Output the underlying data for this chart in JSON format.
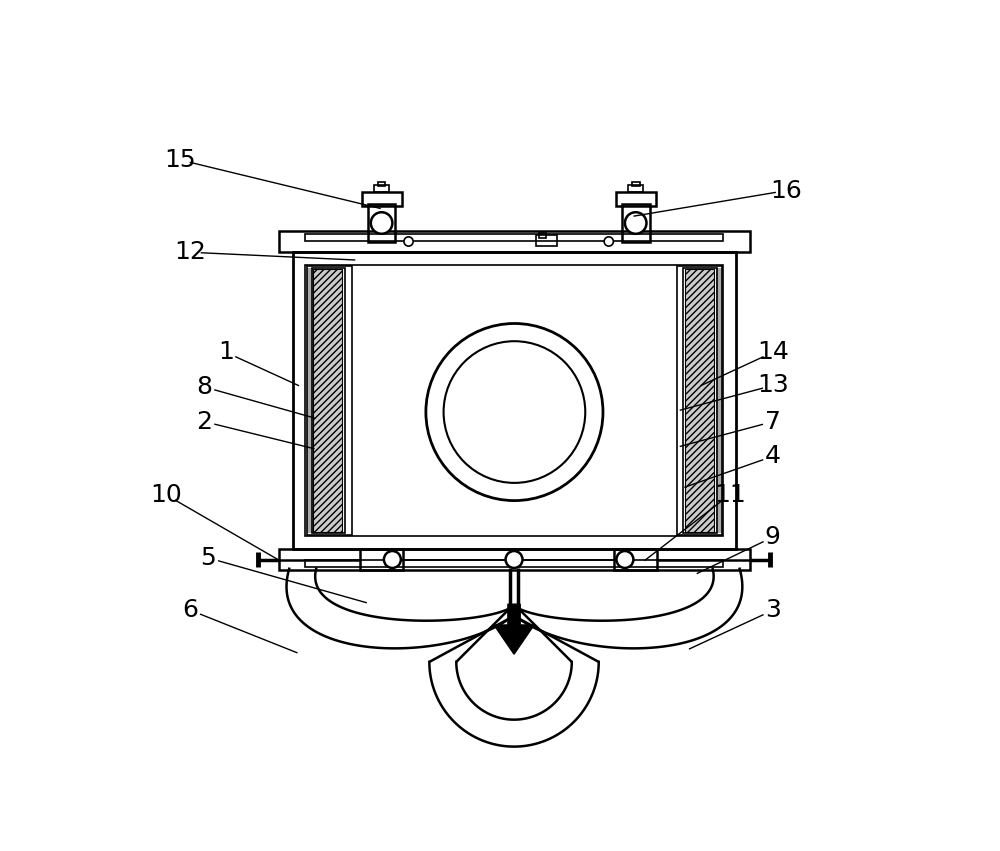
{
  "bg_color": "#ffffff",
  "line_color": "#000000",
  "fig_width": 10.0,
  "fig_height": 8.51,
  "label_fontsize": 18,
  "lw_main": 1.8,
  "lw_thin": 1.2
}
